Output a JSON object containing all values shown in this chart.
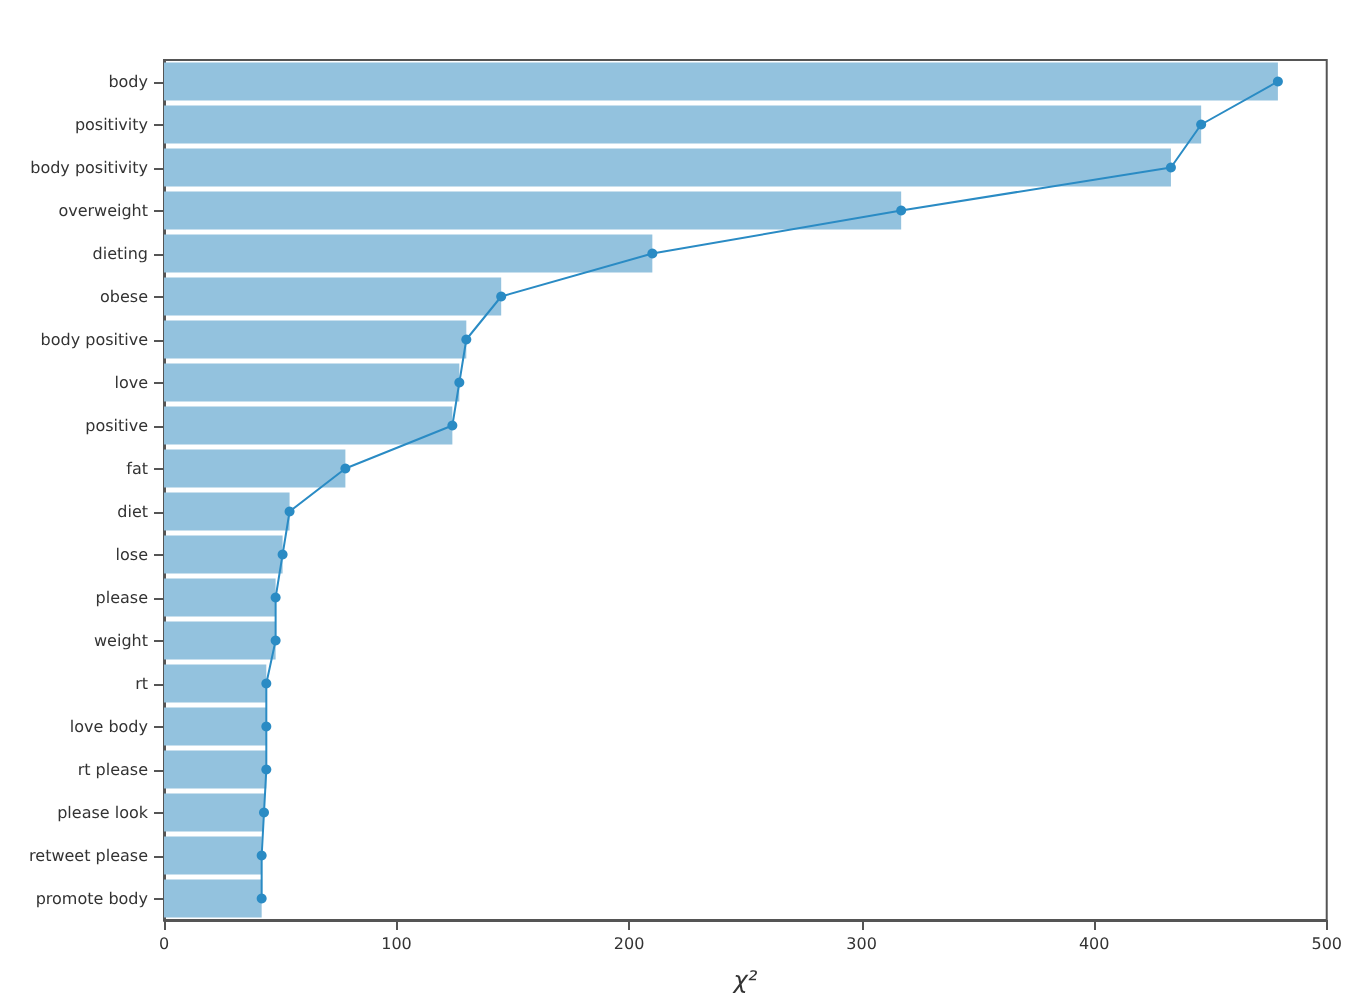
{
  "chart_data": {
    "type": "bar",
    "orientation": "horizontal",
    "xlabel": "χ²",
    "categories": [
      "body",
      "positivity",
      "body positivity",
      "overweight",
      "dieting",
      "obese",
      "body positive",
      "love",
      "positive",
      "fat",
      "diet",
      "lose",
      "please",
      "weight",
      "rt",
      "love body",
      "rt please",
      "please look",
      "retweet please",
      "promote body"
    ],
    "series": [
      {
        "color": "#93c2de",
        "values": [
          479,
          446,
          433,
          317,
          210,
          145,
          130,
          127,
          124,
          78,
          54,
          51,
          48,
          48,
          44,
          44,
          44,
          43,
          42,
          42
        ]
      },
      {
        "type": "line",
        "color": "#2a8bc4",
        "marker": "circle",
        "values": [
          479,
          446,
          433,
          317,
          210,
          145,
          130,
          127,
          124,
          78,
          54,
          51,
          48,
          48,
          44,
          44,
          44,
          43,
          42,
          42
        ]
      }
    ],
    "xlim": [
      0,
      500
    ],
    "xticks": [
      0,
      100,
      200,
      300,
      400,
      500
    ],
    "grid": false
  }
}
